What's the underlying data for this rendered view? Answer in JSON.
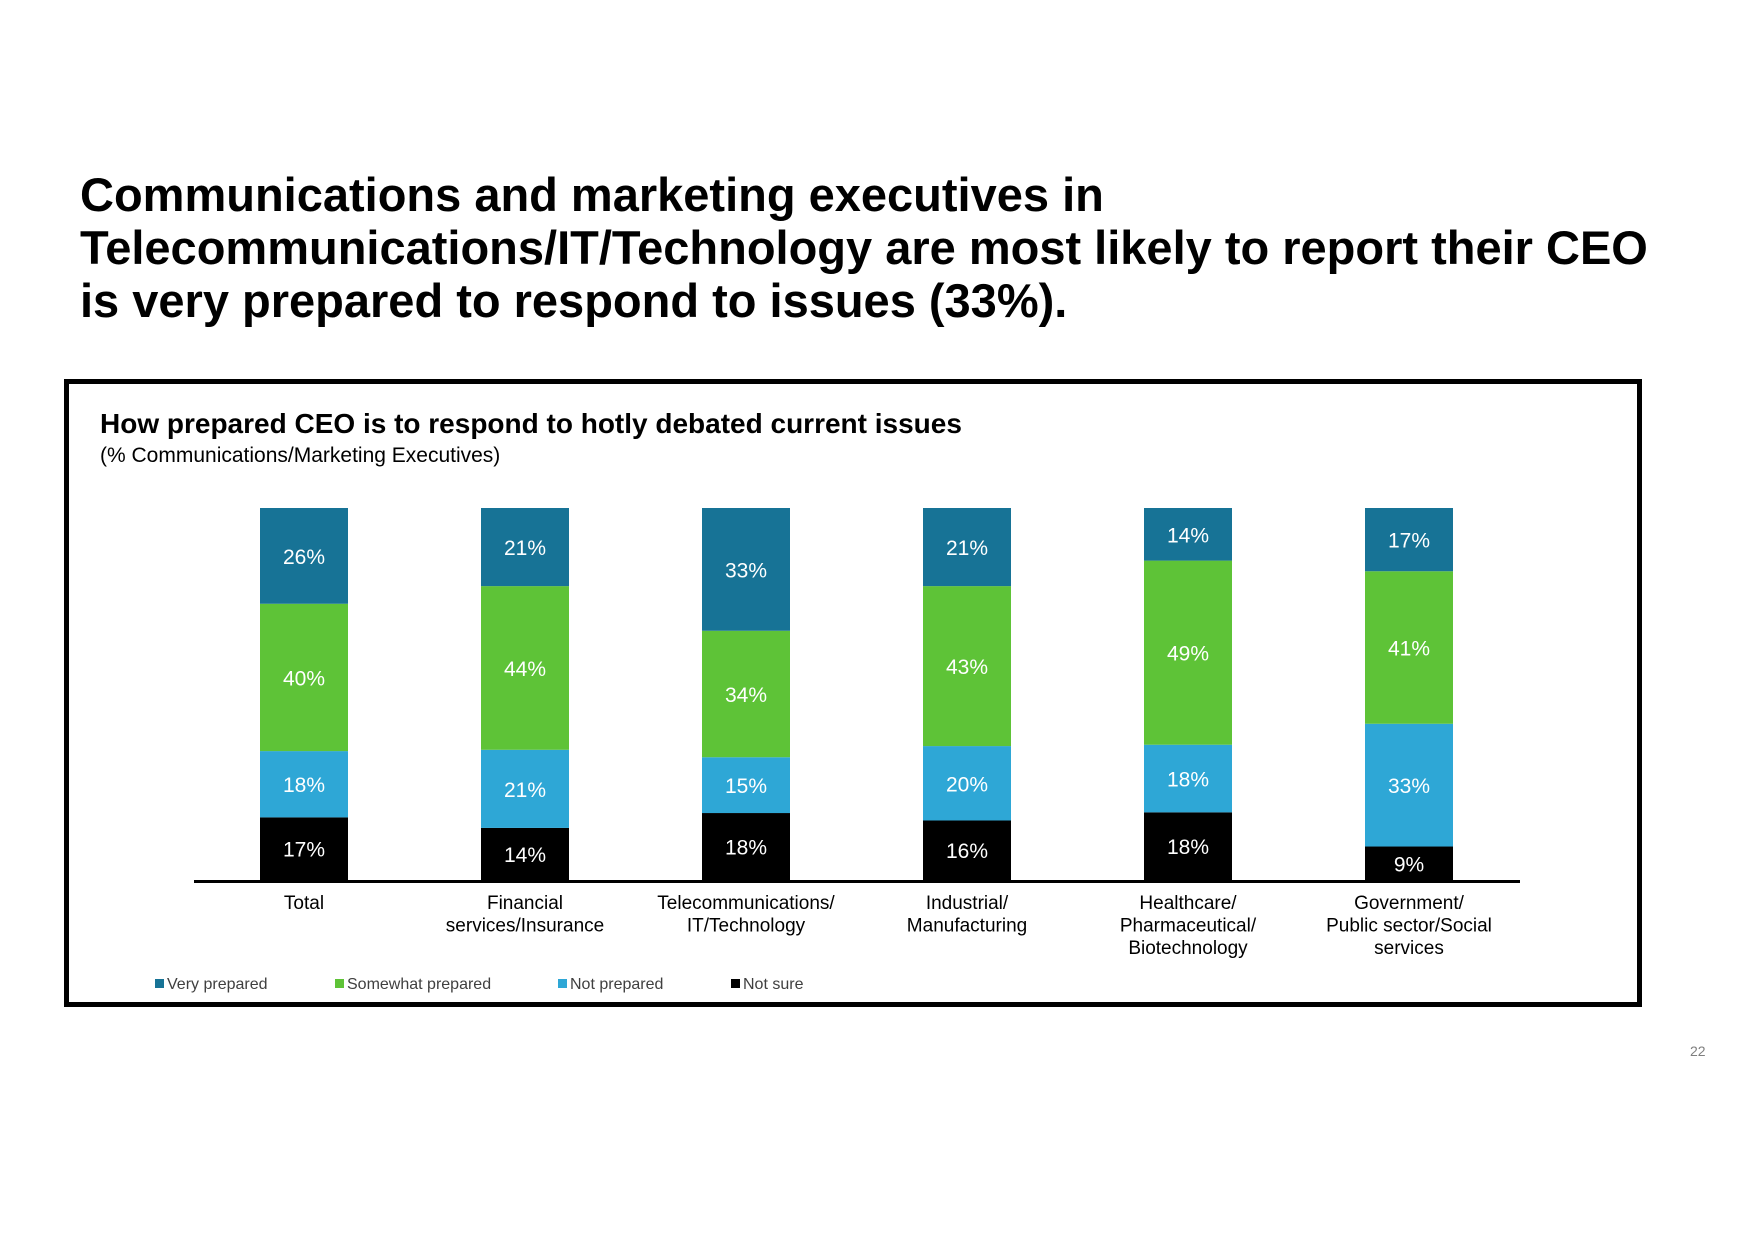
{
  "headline_lines": [
    "Communications and marketing executives in",
    "Telecommunications/IT/Technology are most likely to report their CEO",
    "is very prepared to respond to issues (33%)."
  ],
  "page_number": "22",
  "chart_data": {
    "type": "bar",
    "stacked": true,
    "title": "How prepared CEO is to respond to hotly debated current issues",
    "subtitle": "(% Communications/Marketing Executives)",
    "unit": "%",
    "categories": [
      [
        "Total"
      ],
      [
        "Financial",
        "services/Insurance"
      ],
      [
        "Telecommunications/",
        "IT/Technology"
      ],
      [
        "Industrial/",
        "Manufacturing"
      ],
      [
        "Healthcare/",
        "Pharmaceutical/",
        "Biotechnology"
      ],
      [
        "Government/",
        "Public sector/Social",
        "services"
      ]
    ],
    "series": [
      {
        "name": "Not sure",
        "color": "#000000",
        "values": [
          17,
          14,
          18,
          16,
          18,
          9
        ]
      },
      {
        "name": "Not prepared",
        "color": "#2ea7d6",
        "values": [
          18,
          21,
          15,
          20,
          18,
          33
        ]
      },
      {
        "name": "Somewhat prepared",
        "color": "#5ec337",
        "values": [
          40,
          44,
          34,
          43,
          49,
          41
        ]
      },
      {
        "name": "Very prepared",
        "color": "#177396",
        "values": [
          26,
          21,
          33,
          21,
          14,
          17
        ]
      }
    ],
    "legend_order": [
      "Very prepared",
      "Somewhat prepared",
      "Not prepared",
      "Not sure"
    ],
    "legend_position": "bottom-left",
    "grid": false
  }
}
